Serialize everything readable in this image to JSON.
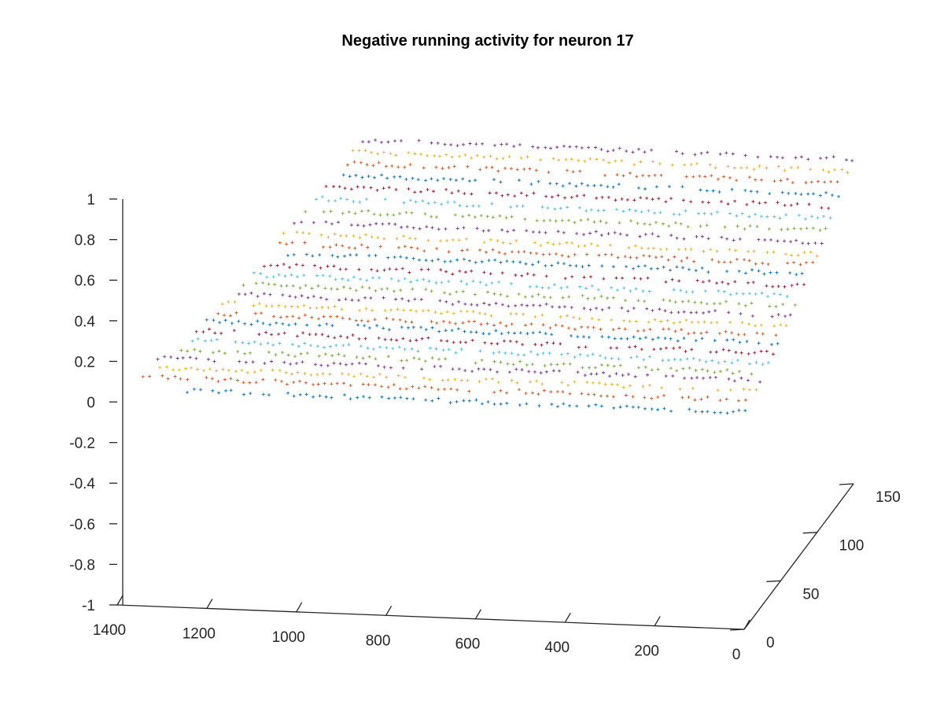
{
  "chart_data": {
    "type": "scatter3",
    "title": "Negative running activity for neuron 17",
    "marker": "+",
    "x_axis": {
      "label": "",
      "range": [
        0,
        1400
      ],
      "ticks": [
        0,
        200,
        400,
        600,
        800,
        1000,
        1200,
        1400
      ],
      "reversed": true
    },
    "y_axis": {
      "label": "",
      "range": [
        0,
        150
      ],
      "ticks": [
        0,
        50,
        100,
        150
      ]
    },
    "z_axis": {
      "label": "",
      "range": [
        -1,
        1
      ],
      "ticks": [
        -1,
        -0.8,
        -0.6,
        -0.4,
        -0.2,
        0,
        0.2,
        0.4,
        0.6,
        0.8,
        1
      ]
    },
    "grid": false,
    "legend": "none",
    "series_colors": [
      "#0072BD",
      "#D95319",
      "#EDB120",
      "#7E2F8E",
      "#77AC30",
      "#4DBEEE",
      "#A2142F"
    ],
    "series": [
      {
        "y": 2,
        "z": 0.06,
        "x_range": [
          0,
          1250
        ]
      },
      {
        "y": 10,
        "z": 0.08,
        "x_range": [
          0,
          1370
        ]
      },
      {
        "y": 16,
        "z": 0.1,
        "x_range": [
          0,
          1350
        ]
      },
      {
        "y": 22,
        "z": 0.12,
        "x_range": [
          0,
          1350
        ]
      },
      {
        "y": 28,
        "z": 0.13,
        "x_range": [
          0,
          1310
        ]
      },
      {
        "y": 34,
        "z": 0.15,
        "x_range": [
          0,
          1300
        ]
      },
      {
        "y": 40,
        "z": 0.17,
        "x_range": [
          0,
          1290
        ]
      },
      {
        "y": 46,
        "z": 0.19,
        "x_range": [
          0,
          1280
        ]
      },
      {
        "y": 52,
        "z": 0.2,
        "x_range": [
          0,
          1270
        ]
      },
      {
        "y": 58,
        "z": 0.22,
        "x_range": [
          0,
          1260
        ]
      },
      {
        "y": 64,
        "z": 0.24,
        "x_range": [
          0,
          1250
        ]
      },
      {
        "y": 70,
        "z": 0.26,
        "x_range": [
          0,
          1240
        ]
      },
      {
        "y": 76,
        "z": 0.28,
        "x_range": [
          0,
          1230
        ]
      },
      {
        "y": 82,
        "z": 0.3,
        "x_range": [
          0,
          1220
        ]
      },
      {
        "y": 88,
        "z": 0.33,
        "x_range": [
          0,
          1210
        ]
      },
      {
        "y": 94,
        "z": 0.35,
        "x_range": [
          0,
          1200
        ]
      },
      {
        "y": 100,
        "z": 0.37,
        "x_range": [
          0,
          1190
        ]
      },
      {
        "y": 106,
        "z": 0.4,
        "x_range": [
          0,
          1180
        ]
      },
      {
        "y": 112,
        "z": 0.43,
        "x_range": [
          0,
          1170
        ]
      },
      {
        "y": 118,
        "z": 0.46,
        "x_range": [
          0,
          1150
        ]
      },
      {
        "y": 124,
        "z": 0.49,
        "x_range": [
          0,
          1140
        ]
      },
      {
        "y": 130,
        "z": 0.52,
        "x_range": [
          0,
          1130
        ]
      },
      {
        "y": 136,
        "z": 0.55,
        "x_range": [
          0,
          1120
        ]
      },
      {
        "y": 142,
        "z": 0.58,
        "x_range": [
          0,
          1110
        ]
      },
      {
        "y": 148,
        "z": 0.61,
        "x_range": [
          0,
          1100
        ]
      }
    ]
  }
}
